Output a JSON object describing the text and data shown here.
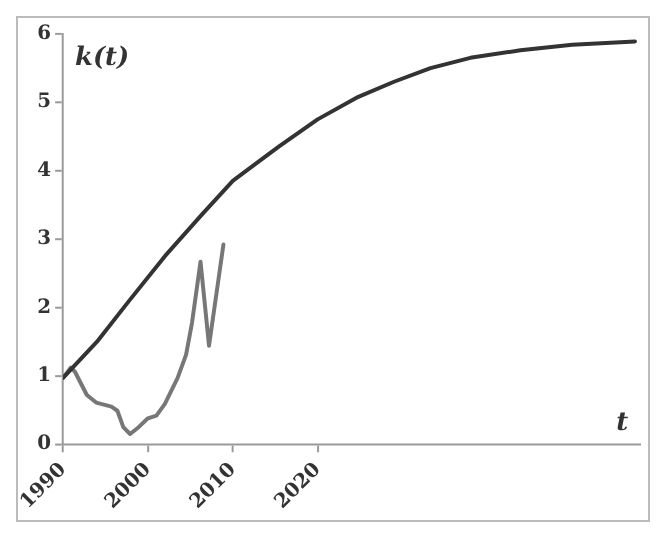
{
  "chart_data": {
    "type": "line",
    "xlabel": "t",
    "ylabel": "k(t)",
    "xlim": [
      1990,
      2058
    ],
    "ylim": [
      0,
      6
    ],
    "xticks": [
      1990,
      2000,
      2010,
      2020
    ],
    "yticks": [
      0,
      1,
      2,
      3,
      4,
      5,
      6
    ],
    "grid": false,
    "legend": false,
    "marker": "none",
    "series": [
      {
        "color": "#333333",
        "x": [
          1990,
          1994,
          1997.8,
          2002,
          2006.3,
          2010,
          2015.5,
          2020,
          2024.8,
          2029,
          2033.3,
          2038,
          2043.9,
          2050,
          2057.4
        ],
        "values": [
          0.97,
          1.5,
          2.1,
          2.75,
          3.35,
          3.85,
          4.36,
          4.75,
          5.08,
          5.3,
          5.5,
          5.65,
          5.76,
          5.84,
          5.89
        ]
      },
      {
        "color": "#777777",
        "x": [
          1990,
          1990.9,
          1991.4,
          1992.8,
          1993.9,
          1995.7,
          1996.4,
          1997.1,
          1997.9,
          1998.9,
          2000,
          2001,
          2002,
          2003.5,
          2004.5,
          2005.2,
          2006.2,
          2007.2,
          2008.9
        ],
        "values": [
          0.97,
          1.12,
          1.06,
          0.72,
          0.61,
          0.55,
          0.49,
          0.25,
          0.15,
          0.25,
          0.38,
          0.42,
          0.59,
          0.97,
          1.31,
          1.78,
          2.67,
          1.44,
          2.92
        ]
      }
    ]
  }
}
